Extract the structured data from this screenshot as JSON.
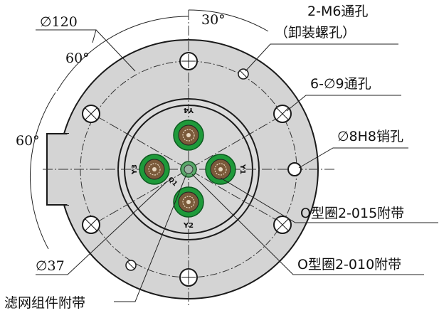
{
  "labels": {
    "dia_120": "∅120",
    "angle_30": "30°",
    "angle_60_top": "60°",
    "angle_60_left": "60°",
    "m6_line1": "2-M6通孔",
    "m6_line2": "（卸装螺孔）",
    "holes_9": "6-∅9通孔",
    "pin_8h8": "∅8H8销孔",
    "oring_015": "O型圈2-015附带",
    "oring_010": "O型圈2-010附带",
    "dia_37": "∅37",
    "filter": "滤网组件附带"
  },
  "ports": {
    "y1": "Y1",
    "y2": "Y2",
    "y3": "Y3",
    "y4": "Y4",
    "q1": "Q1"
  },
  "colors": {
    "plate": "#d4d4d4",
    "line": "#1a1a1a",
    "oring": "#1e9a3a",
    "core": "#7a5a3a"
  }
}
